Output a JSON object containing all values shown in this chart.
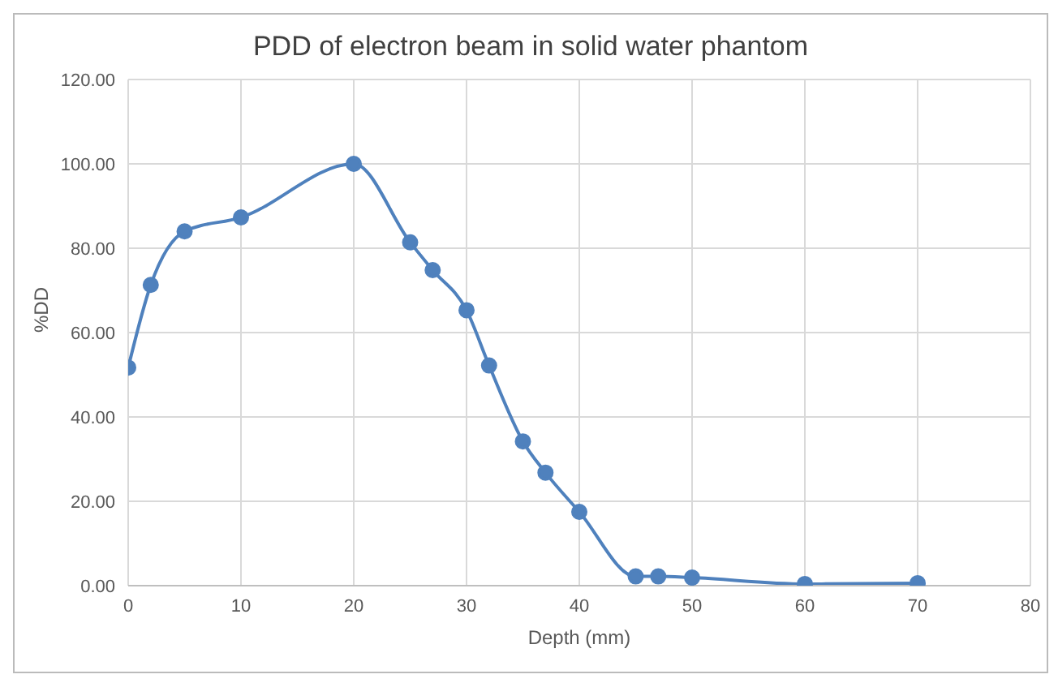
{
  "chart_data": {
    "type": "line",
    "title": "PDD of electron beam in solid water phantom",
    "xlabel": "Depth (mm)",
    "ylabel": "%DD",
    "x": [
      0,
      2,
      5,
      10,
      20,
      25,
      27,
      30,
      32,
      35,
      37,
      40,
      45,
      47,
      50,
      60,
      70
    ],
    "series": [
      {
        "color": "#4f81bd",
        "values": [
          51.7,
          71.3,
          84,
          87.3,
          100,
          81.4,
          74.8,
          65.3,
          52.2,
          34.2,
          26.8,
          17.5,
          2.2,
          2.2,
          1.9,
          0.4,
          0.6
        ]
      }
    ],
    "xlim": [
      0,
      80
    ],
    "xticks": [
      0,
      10,
      20,
      30,
      40,
      50,
      60,
      70,
      80
    ],
    "ylim": [
      0,
      120
    ],
    "yticks": [
      {
        "value": 0,
        "label": "0.00"
      },
      {
        "value": 20,
        "label": "20.00"
      },
      {
        "value": 40,
        "label": "40.00"
      },
      {
        "value": 60,
        "label": "60.00"
      },
      {
        "value": 80,
        "label": "80.00"
      },
      {
        "value": 100,
        "label": "100.00"
      },
      {
        "value": 120,
        "label": "120.00"
      }
    ],
    "grid": true,
    "marker": "circle",
    "line_style": "solid",
    "legend": false
  }
}
